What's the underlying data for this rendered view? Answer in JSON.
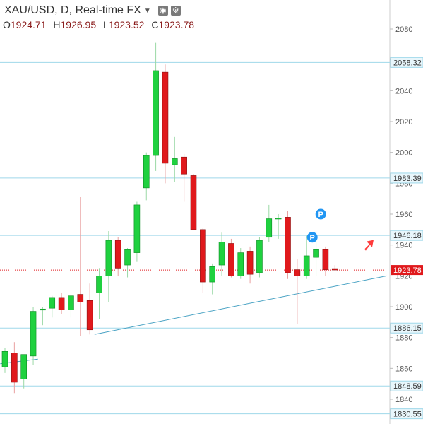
{
  "header": {
    "title": "XAU/USD, D, Real-time FX",
    "settings_icon": "gear-icon",
    "visibility_icon": "eye-icon",
    "ohlc": {
      "o_label": "O",
      "o_value": "1924.71",
      "h_label": "H",
      "h_value": "1926.95",
      "l_label": "L",
      "l_value": "1923.52",
      "c_label": "C",
      "c_value": "1923.78"
    }
  },
  "chart_data": {
    "type": "candlestick",
    "symbol": "XAU/USD",
    "interval": "D",
    "ylim": [
      1826,
      2098
    ],
    "y_ticks": [
      1840,
      1860,
      1880,
      1900,
      1920,
      1940,
      1960,
      1980,
      2000,
      2020,
      2040,
      2060,
      2080
    ],
    "horizontal_levels": [
      {
        "label": "2058.32",
        "value": 2058.32
      },
      {
        "label": "1983.39",
        "value": 1983.39
      },
      {
        "label": "1946.18",
        "value": 1946.18
      },
      {
        "label": "1886.15",
        "value": 1886.15
      },
      {
        "label": "1848.59",
        "value": 1848.59
      },
      {
        "label": "1830.55",
        "value": 1830.55
      }
    ],
    "current_price": {
      "label": "1923.78",
      "value": 1923.78
    },
    "candles": [
      {
        "o": 1861.0,
        "h": 1873.0,
        "l": 1857.0,
        "c": 1871.0
      },
      {
        "o": 1870.0,
        "h": 1877.0,
        "l": 1844.0,
        "c": 1851.0
      },
      {
        "o": 1853.0,
        "h": 1868.0,
        "l": 1847.0,
        "c": 1869.0
      },
      {
        "o": 1868.0,
        "h": 1900.0,
        "l": 1862.0,
        "c": 1897.0
      },
      {
        "o": 1898.0,
        "h": 1900.0,
        "l": 1888.0,
        "c": 1898.5
      },
      {
        "o": 1899.0,
        "h": 1907.0,
        "l": 1893.0,
        "c": 1906.0
      },
      {
        "o": 1906.0,
        "h": 1909.0,
        "l": 1895.0,
        "c": 1898.0
      },
      {
        "o": 1898.0,
        "h": 1908.0,
        "l": 1893.0,
        "c": 1907.0
      },
      {
        "o": 1908.0,
        "h": 1971.0,
        "l": 1881.0,
        "c": 1903.0
      },
      {
        "o": 1904.0,
        "h": 1915.0,
        "l": 1882.0,
        "c": 1885.0
      },
      {
        "o": 1909.0,
        "h": 1925.0,
        "l": 1892.0,
        "c": 1920.0
      },
      {
        "o": 1920.0,
        "h": 1949.0,
        "l": 1903.0,
        "c": 1943.0
      },
      {
        "o": 1943.0,
        "h": 1945.0,
        "l": 1920.0,
        "c": 1925.0
      },
      {
        "o": 1927.0,
        "h": 1938.0,
        "l": 1919.0,
        "c": 1937.0
      },
      {
        "o": 1935.0,
        "h": 1968.0,
        "l": 1929.0,
        "c": 1966.0
      },
      {
        "o": 1977.0,
        "h": 2000.0,
        "l": 1969.0,
        "c": 1998.0
      },
      {
        "o": 1998.0,
        "h": 2071.0,
        "l": 1988.0,
        "c": 2053.0
      },
      {
        "o": 2052.0,
        "h": 2057.0,
        "l": 1980.0,
        "c": 1993.0
      },
      {
        "o": 1992.0,
        "h": 2010.0,
        "l": 1981.0,
        "c": 1996.0
      },
      {
        "o": 1997.0,
        "h": 1999.0,
        "l": 1968.0,
        "c": 1986.0
      },
      {
        "o": 1985.0,
        "h": 1986.0,
        "l": 1951.0,
        "c": 1950.0
      },
      {
        "o": 1950.0,
        "h": 1951.0,
        "l": 1909.0,
        "c": 1916.0
      },
      {
        "o": 1916.0,
        "h": 1928.0,
        "l": 1908.0,
        "c": 1926.0
      },
      {
        "o": 1927.0,
        "h": 1948.0,
        "l": 1920.0,
        "c": 1942.0
      },
      {
        "o": 1941.0,
        "h": 1944.0,
        "l": 1919.0,
        "c": 1920.0
      },
      {
        "o": 1920.0,
        "h": 1938.0,
        "l": 1918.0,
        "c": 1935.0
      },
      {
        "o": 1936.0,
        "h": 1939.0,
        "l": 1915.0,
        "c": 1921.0
      },
      {
        "o": 1922.0,
        "h": 1945.0,
        "l": 1919.0,
        "c": 1943.0
      },
      {
        "o": 1945.0,
        "h": 1966.0,
        "l": 1942.0,
        "c": 1957.0
      },
      {
        "o": 1957.0,
        "h": 1960.0,
        "l": 1944.0,
        "c": 1957.5
      },
      {
        "o": 1958.0,
        "h": 1962.0,
        "l": 1918.0,
        "c": 1922.0
      },
      {
        "o": 1924.0,
        "h": 1931.0,
        "l": 1889.0,
        "c": 1920.0
      },
      {
        "o": 1920.0,
        "h": 1946.0,
        "l": 1918.0,
        "c": 1933.0
      },
      {
        "o": 1932.0,
        "h": 1949.0,
        "l": 1920.0,
        "c": 1937.0
      },
      {
        "o": 1937.0,
        "h": 1939.0,
        "l": 1920.0,
        "c": 1924.0
      },
      {
        "o": 1924.7,
        "h": 1926.9,
        "l": 1923.5,
        "c": 1923.8
      }
    ],
    "trendlines": [
      {
        "from": [
          9.5,
          1882
        ],
        "to": [
          40.5,
          1920
        ]
      },
      {
        "from": [
          -0.5,
          1863
        ],
        "to": [
          3.5,
          1866
        ]
      }
    ],
    "markers": [
      {
        "label": "P",
        "index": 33.5,
        "value": 1960
      },
      {
        "label": "P",
        "index": 32.6,
        "value": 1945
      }
    ],
    "arrow": {
      "index": 38.5,
      "value": 1940,
      "direction": "up",
      "color": "#ff3b3b"
    },
    "colors": {
      "up": "#1fd13f",
      "down": "#e0191c",
      "level_line": "#9fd8ea",
      "level_label_bg": "#e8f6fb",
      "current_label_bg": "#e0191c",
      "trendline": "#4aa3c4",
      "marker": "#2196f3",
      "axis_text": "#555555",
      "wick": "#888888"
    }
  }
}
